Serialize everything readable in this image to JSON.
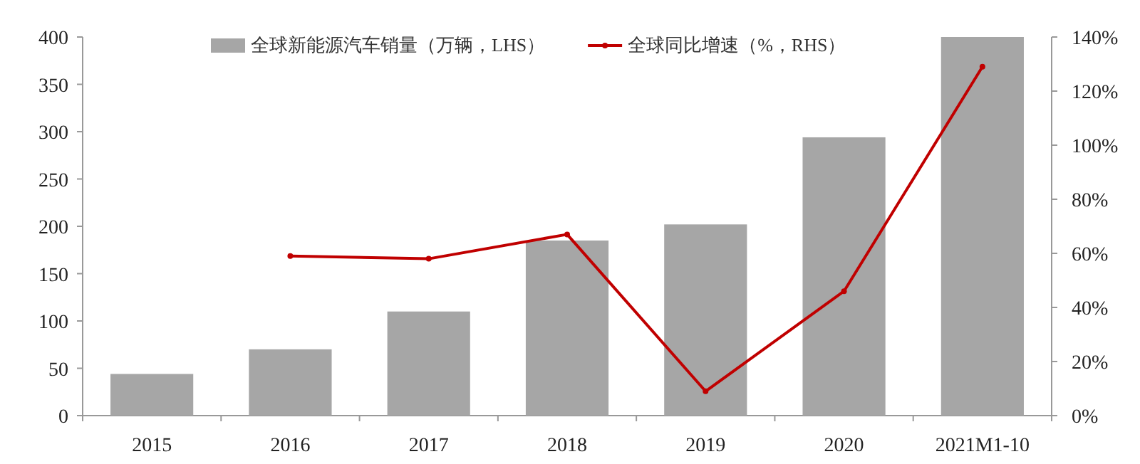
{
  "chart_data": {
    "type": "bar",
    "categories": [
      "2015",
      "2016",
      "2017",
      "2018",
      "2019",
      "2020",
      "2021M1-10"
    ],
    "series": [
      {
        "name": "全球新能源汽车销量（万辆，LHS）",
        "color": "#a6a6a6",
        "values": [
          44,
          70,
          110,
          185,
          202,
          294,
          400
        ]
      },
      {
        "name": "全球同比增速（%，RHS）",
        "type": "line",
        "axis": "y2",
        "color": "#c00000",
        "values": [
          null,
          59,
          58,
          67,
          9,
          46,
          129
        ]
      }
    ],
    "ylim": [
      0,
      400
    ],
    "yticks": [
      0,
      50,
      100,
      150,
      200,
      250,
      300,
      350,
      400
    ],
    "y2lim": [
      0,
      140
    ],
    "y2ticks": [
      {
        "value": 0,
        "label": "0%"
      },
      {
        "value": 20,
        "label": "20%"
      },
      {
        "value": 40,
        "label": "40%"
      },
      {
        "value": 60,
        "label": "60%"
      },
      {
        "value": 80,
        "label": "80%"
      },
      {
        "value": 100,
        "label": "100%"
      },
      {
        "value": 120,
        "label": "120%"
      },
      {
        "value": 140,
        "label": "140%"
      }
    ],
    "legend": "top",
    "grid": false,
    "marker": "circle",
    "line_style": "solid"
  }
}
